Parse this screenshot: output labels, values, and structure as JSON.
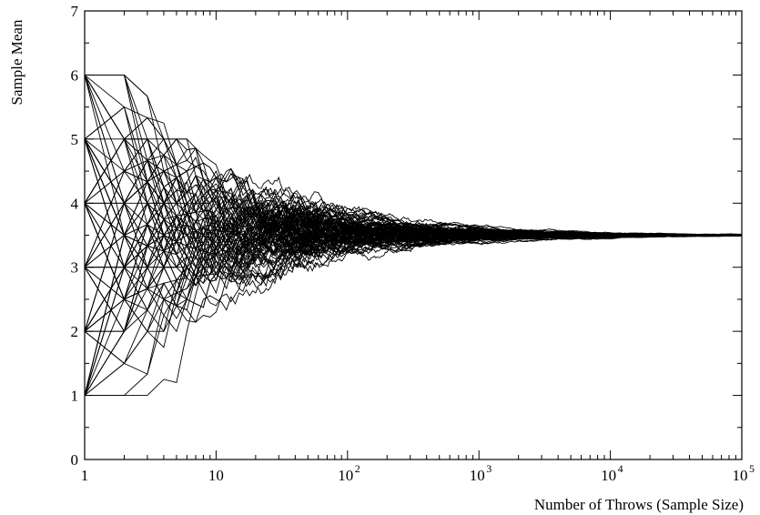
{
  "chart_data": {
    "type": "line",
    "title": "",
    "xlabel": "Number of Throws (Sample Size)",
    "ylabel": "Sample Mean",
    "xscale": "log",
    "xlim": [
      1,
      100000
    ],
    "ylim": [
      0,
      7
    ],
    "grid": false,
    "legend": "none",
    "line_color": "#000000",
    "x_ticks": [
      {
        "value": 1,
        "label": "1",
        "exp": ""
      },
      {
        "value": 10,
        "label": "10",
        "exp": ""
      },
      {
        "value": 100,
        "label": "10",
        "exp": "2"
      },
      {
        "value": 1000,
        "label": "10",
        "exp": "3"
      },
      {
        "value": 10000,
        "label": "10",
        "exp": "4"
      },
      {
        "value": 100000,
        "label": "10",
        "exp": "5"
      }
    ],
    "y_ticks": [
      {
        "value": 0,
        "label": "0"
      },
      {
        "value": 1,
        "label": "1"
      },
      {
        "value": 2,
        "label": "2"
      },
      {
        "value": 3,
        "label": "3"
      },
      {
        "value": 4,
        "label": "4"
      },
      {
        "value": 5,
        "label": "5"
      },
      {
        "value": 6,
        "label": "6"
      },
      {
        "value": 7,
        "label": "7"
      }
    ],
    "description_of_series": "about 100 simulated running means of fair six-sided die throws, starting at integer values 1-6 at n=1 and converging to 3.5 by n=100000",
    "series_count": 100,
    "die_faces": 6,
    "expected_value": 3.5,
    "series_start_values_n1": [
      1,
      2,
      3,
      4,
      5,
      6
    ]
  }
}
